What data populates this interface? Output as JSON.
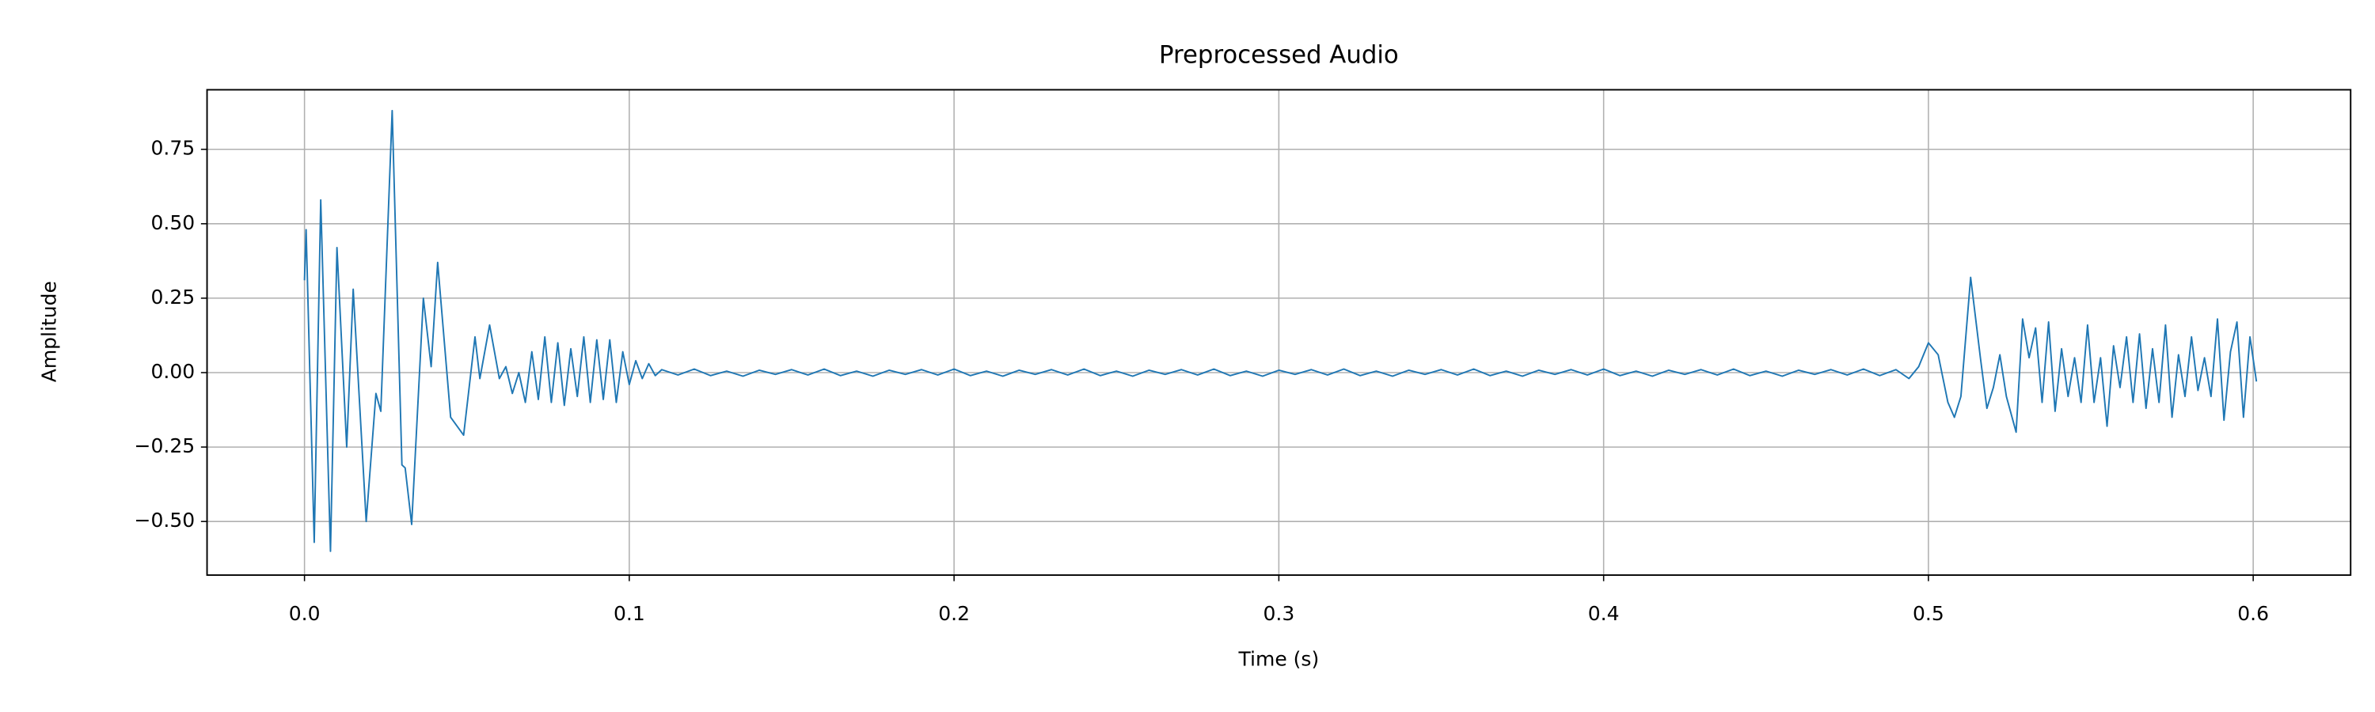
{
  "chart_data": {
    "type": "line",
    "title": "Preprocessed Audio",
    "xlabel": "Time (s)",
    "ylabel": "Amplitude",
    "color": "#1f77b4",
    "grid": true,
    "xlim": [
      -0.03,
      0.63
    ],
    "ylim": [
      -0.68,
      0.95
    ],
    "xticks": [
      {
        "value": 0,
        "label": "0.0"
      },
      0.1,
      0.2,
      0.3,
      0.4,
      0.5,
      0.6
    ],
    "yticks": [
      {
        "value": -0.5,
        "label": "−0.50"
      },
      {
        "value": -0.25,
        "label": "−0.25"
      },
      {
        "value": 0,
        "label": "0.00"
      },
      {
        "value": 0.25,
        "label": "0.25"
      },
      {
        "value": 0.5,
        "label": "0.50"
      },
      {
        "value": 0.75,
        "label": "0.75"
      }
    ],
    "x": [
      0,
      0.0005,
      0.003,
      0.005,
      0.008,
      0.01,
      0.013,
      0.015,
      0.019,
      0.022,
      0.0235,
      0.027,
      0.03,
      0.031,
      0.033,
      0.0366,
      0.039,
      0.041,
      0.045,
      0.049,
      0.0525,
      0.054,
      0.057,
      0.06,
      0.062,
      0.064,
      0.066,
      0.068,
      0.07,
      0.072,
      0.074,
      0.076,
      0.078,
      0.08,
      0.082,
      0.084,
      0.086,
      0.088,
      0.09,
      0.092,
      0.094,
      0.096,
      0.098,
      0.1,
      0.102,
      0.104,
      0.106,
      0.108,
      0.11,
      0.115,
      0.12,
      0.125,
      0.13,
      0.135,
      0.14,
      0.145,
      0.15,
      0.155,
      0.16,
      0.165,
      0.17,
      0.175,
      0.18,
      0.185,
      0.19,
      0.195,
      0.2,
      0.205,
      0.21,
      0.215,
      0.22,
      0.225,
      0.23,
      0.235,
      0.24,
      0.245,
      0.25,
      0.255,
      0.26,
      0.265,
      0.27,
      0.275,
      0.28,
      0.285,
      0.29,
      0.295,
      0.3,
      0.305,
      0.31,
      0.315,
      0.32,
      0.325,
      0.33,
      0.335,
      0.34,
      0.345,
      0.35,
      0.355,
      0.36,
      0.365,
      0.37,
      0.375,
      0.38,
      0.385,
      0.39,
      0.395,
      0.4,
      0.405,
      0.41,
      0.415,
      0.42,
      0.425,
      0.43,
      0.435,
      0.44,
      0.445,
      0.45,
      0.455,
      0.46,
      0.465,
      0.47,
      0.475,
      0.48,
      0.485,
      0.49,
      0.494,
      0.497,
      0.5,
      0.503,
      0.506,
      0.508,
      0.51,
      0.513,
      0.516,
      0.518,
      0.52,
      0.522,
      0.524,
      0.527,
      0.529,
      0.531,
      0.533,
      0.535,
      0.537,
      0.539,
      0.541,
      0.543,
      0.545,
      0.547,
      0.549,
      0.551,
      0.553,
      0.555,
      0.557,
      0.559,
      0.561,
      0.563,
      0.565,
      0.567,
      0.569,
      0.571,
      0.573,
      0.575,
      0.577,
      0.579,
      0.581,
      0.583,
      0.585,
      0.587,
      0.589,
      0.591,
      0.593,
      0.595,
      0.597,
      0.599,
      0.601
    ],
    "values": [
      0.31,
      0.48,
      -0.57,
      0.58,
      -0.6,
      0.42,
      -0.25,
      0.28,
      -0.5,
      -0.07,
      -0.13,
      0.88,
      -0.31,
      -0.32,
      -0.51,
      0.25,
      0.02,
      0.37,
      -0.15,
      -0.21,
      0.12,
      -0.02,
      0.16,
      -0.02,
      0.02,
      -0.07,
      0.0,
      -0.1,
      0.07,
      -0.09,
      0.12,
      -0.1,
      0.1,
      -0.11,
      0.08,
      -0.08,
      0.12,
      -0.1,
      0.11,
      -0.09,
      0.11,
      -0.1,
      0.07,
      -0.04,
      0.04,
      -0.02,
      0.03,
      -0.01,
      0.01,
      -0.008,
      0.012,
      -0.01,
      0.005,
      -0.012,
      0.008,
      -0.006,
      0.01,
      -0.008,
      0.012,
      -0.01,
      0.005,
      -0.012,
      0.008,
      -0.006,
      0.01,
      -0.008,
      0.012,
      -0.01,
      0.005,
      -0.012,
      0.008,
      -0.006,
      0.01,
      -0.008,
      0.012,
      -0.01,
      0.005,
      -0.012,
      0.008,
      -0.006,
      0.01,
      -0.008,
      0.012,
      -0.01,
      0.005,
      -0.012,
      0.008,
      -0.006,
      0.01,
      -0.008,
      0.012,
      -0.01,
      0.005,
      -0.012,
      0.008,
      -0.006,
      0.01,
      -0.008,
      0.012,
      -0.01,
      0.005,
      -0.012,
      0.008,
      -0.006,
      0.01,
      -0.008,
      0.012,
      -0.01,
      0.005,
      -0.012,
      0.008,
      -0.006,
      0.01,
      -0.008,
      0.012,
      -0.01,
      0.005,
      -0.012,
      0.008,
      -0.006,
      0.01,
      -0.008,
      0.012,
      -0.01,
      0.01,
      -0.02,
      0.02,
      0.1,
      0.06,
      -0.1,
      -0.15,
      -0.08,
      0.32,
      0.05,
      -0.12,
      -0.05,
      0.06,
      -0.08,
      -0.2,
      0.18,
      0.05,
      0.15,
      -0.1,
      0.17,
      -0.13,
      0.08,
      -0.08,
      0.05,
      -0.1,
      0.16,
      -0.1,
      0.05,
      -0.18,
      0.09,
      -0.05,
      0.12,
      -0.1,
      0.13,
      -0.12,
      0.08,
      -0.1,
      0.16,
      -0.15,
      0.06,
      -0.08,
      0.12,
      -0.06,
      0.05,
      -0.08,
      0.18,
      -0.16,
      0.07,
      0.17,
      -0.15,
      0.12,
      -0.03
    ]
  }
}
